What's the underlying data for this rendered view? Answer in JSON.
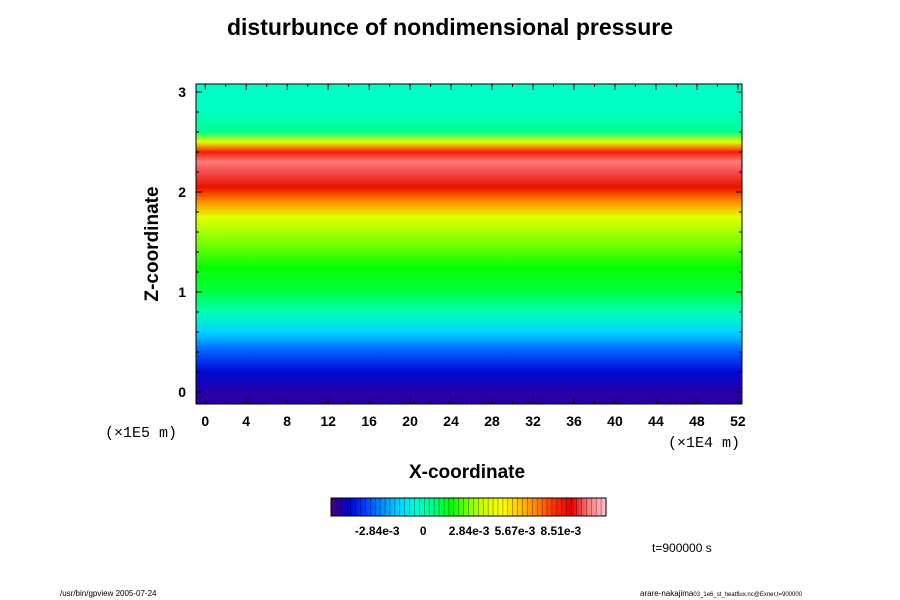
{
  "chart_data": {
    "type": "heatmap",
    "title": "disturbunce of nondimensional pressure",
    "xlabel": "X-coordinate",
    "ylabel": "Z-coordinate",
    "x_unit": "(×1E4 m)",
    "y_unit": "(×1E5 m)",
    "x_ticks": [
      0,
      4,
      8,
      12,
      16,
      20,
      24,
      28,
      32,
      36,
      40,
      44,
      48,
      52
    ],
    "y_ticks": [
      0,
      1,
      2,
      3
    ],
    "xlim": [
      -0.9,
      52.4
    ],
    "ylim": [
      -0.12,
      3.08
    ],
    "colorbar": {
      "labels": [
        "-2.84e-3",
        "0",
        "2.84e-3",
        "5.67e-3",
        "8.51e-3"
      ],
      "label_values": [
        -0.00284,
        0,
        0.00284,
        0.00567,
        0.00851
      ],
      "range": [
        -0.0057,
        0.0113
      ],
      "colors": [
        "#4b0082",
        "#0000cd",
        "#0040ff",
        "#0090ff",
        "#00d8ff",
        "#00ffd0",
        "#00ff80",
        "#00ff00",
        "#80ff00",
        "#d8ff00",
        "#ffff00",
        "#ffc000",
        "#ff8000",
        "#ff3000",
        "#e00000",
        "#ff8080",
        "#ffc0d0"
      ]
    },
    "profile": {
      "z": [
        0.0,
        0.2,
        0.4,
        0.6,
        0.8,
        1.0,
        1.25,
        1.5,
        1.75,
        1.9,
        2.05,
        2.2,
        2.3,
        2.4,
        2.5,
        2.6,
        2.8,
        3.08
      ],
      "value": [
        -0.0052,
        -0.0045,
        -0.0032,
        -0.0015,
        0.0,
        0.0012,
        0.0018,
        0.0028,
        0.0042,
        0.0068,
        0.0088,
        0.0098,
        0.0102,
        0.0085,
        0.0042,
        0.0005,
        -0.0002,
        -0.0003
      ]
    },
    "time_label": "t=900000 s"
  },
  "footer": {
    "left": "/usr/bin/gpview 2005-07-24",
    "right_main": "arare-nakajima",
    "right_small": "03_1e6_st_heatflux.nc@Exner,t=900000"
  }
}
